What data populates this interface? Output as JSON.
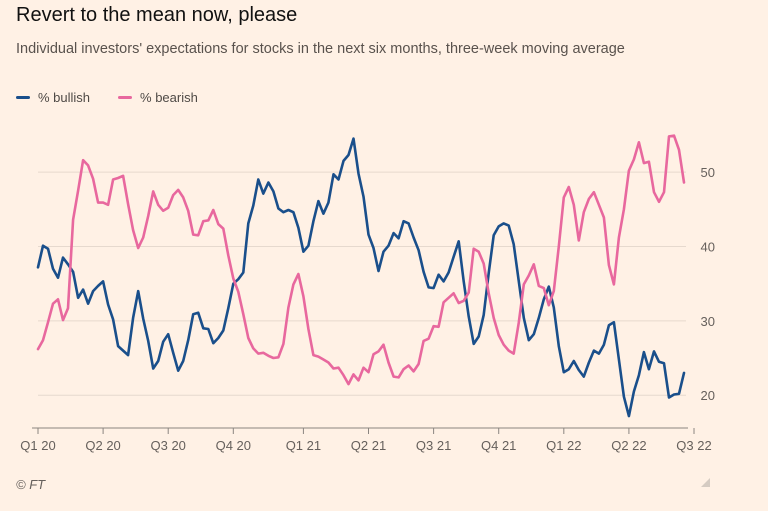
{
  "title": "Revert to the mean now, please",
  "subtitle": "Individual investors' expectations for stocks in the next six months, three-week moving average",
  "source": "© FT",
  "chart_data": {
    "type": "line",
    "title": "Revert to the mean now, please",
    "subtitle": "Individual investors' expectations for stocks in the next six months, three-week moving average",
    "x_labels": [
      "Q1 20",
      "Q2 20",
      "Q3 20",
      "Q4 20",
      "Q1 21",
      "Q2 21",
      "Q3 21",
      "Q4 21",
      "Q1 22",
      "Q2 22",
      "Q3 22"
    ],
    "x_label_weeks": [
      0,
      13,
      26,
      39,
      53,
      66,
      79,
      92,
      105,
      118,
      131
    ],
    "ylim": [
      16,
      57
    ],
    "y_ticks": [
      20,
      30,
      40,
      50
    ],
    "grid": true,
    "y_axis_side": "right",
    "legend_position": "top-left",
    "series": [
      {
        "name": "% bullish",
        "color": "#1a4f8b",
        "values": [
          37.2,
          40.1,
          39.7,
          37.0,
          35.8,
          38.5,
          37.6,
          36.6,
          33.1,
          34.2,
          32.3,
          34.0,
          34.7,
          35.3,
          32.2,
          30.2,
          26.6,
          26.0,
          25.4,
          30.4,
          34.0,
          30.3,
          27.3,
          23.6,
          24.6,
          27.2,
          28.2,
          25.7,
          23.3,
          24.6,
          27.4,
          30.9,
          31.1,
          29.0,
          28.9,
          27.0,
          27.7,
          28.7,
          31.7,
          35.0,
          35.6,
          36.5,
          43.1,
          45.5,
          49.0,
          47.1,
          48.6,
          47.4,
          45.1,
          44.6,
          44.9,
          44.6,
          42.5,
          39.3,
          40.1,
          43.4,
          46.1,
          44.4,
          45.9,
          49.7,
          49.0,
          51.5,
          52.3,
          54.5,
          49.8,
          46.7,
          41.6,
          39.8,
          36.7,
          39.3,
          40.1,
          41.8,
          41.1,
          43.4,
          43.1,
          41.2,
          39.5,
          36.6,
          34.5,
          34.4,
          36.2,
          35.3,
          36.5,
          38.6,
          40.7,
          35.3,
          30.6,
          26.9,
          27.9,
          30.8,
          36.4,
          41.5,
          42.7,
          43.1,
          42.8,
          40.3,
          35.4,
          30.4,
          27.4,
          28.2,
          30.4,
          32.9,
          34.6,
          31.8,
          26.6,
          23.1,
          23.5,
          24.6,
          23.4,
          22.5,
          24.4,
          26.0,
          25.6,
          26.8,
          29.4,
          29.8,
          24.8,
          19.8,
          17.2,
          20.5,
          22.7,
          25.8,
          23.5,
          25.9,
          24.5,
          24.3,
          19.7,
          20.1,
          20.2,
          23.0
        ]
      },
      {
        "name": "% bearish",
        "color": "#e8689e",
        "values": [
          26.2,
          27.4,
          29.8,
          32.3,
          32.9,
          30.1,
          31.7,
          43.6,
          47.5,
          51.6,
          50.9,
          49.1,
          45.9,
          45.9,
          45.6,
          49.0,
          49.2,
          49.5,
          45.7,
          42.2,
          39.8,
          41.2,
          44.1,
          47.4,
          45.6,
          44.8,
          45.2,
          46.9,
          47.6,
          46.6,
          44.8,
          41.6,
          41.5,
          43.4,
          43.5,
          44.9,
          43.0,
          42.4,
          38.8,
          35.7,
          33.9,
          30.9,
          27.7,
          26.3,
          25.6,
          25.7,
          25.3,
          25.0,
          25.1,
          26.9,
          31.8,
          34.9,
          36.3,
          33.3,
          28.9,
          25.4,
          25.2,
          24.8,
          24.4,
          23.6,
          23.7,
          22.7,
          21.5,
          22.8,
          22.0,
          23.7,
          23.1,
          25.5,
          25.9,
          26.8,
          24.4,
          22.5,
          22.4,
          23.5,
          24.0,
          23.2,
          24.2,
          27.3,
          27.6,
          29.3,
          29.2,
          32.5,
          33.1,
          33.7,
          32.4,
          32.7,
          33.8,
          39.7,
          39.3,
          37.7,
          33.7,
          30.4,
          28.1,
          26.8,
          26.0,
          25.6,
          29.7,
          34.9,
          36.1,
          37.6,
          34.7,
          34.4,
          32.1,
          34.0,
          40.0,
          46.6,
          48.0,
          45.6,
          40.8,
          44.6,
          46.4,
          47.3,
          45.6,
          43.9,
          37.5,
          34.9,
          41.2,
          45.0,
          50.2,
          51.7,
          54.0,
          51.2,
          51.4,
          47.3,
          46.0,
          47.3,
          54.8,
          54.9,
          53.0,
          48.6
        ]
      }
    ]
  }
}
